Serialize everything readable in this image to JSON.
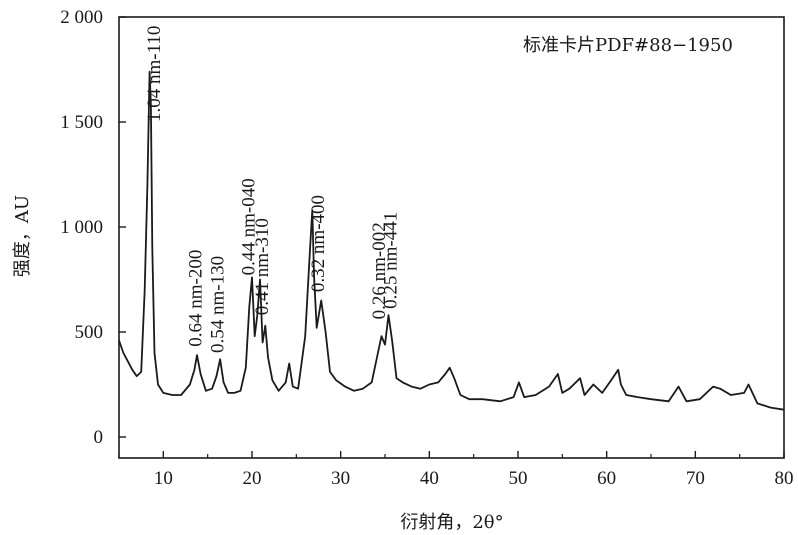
{
  "chart_data": {
    "type": "line",
    "title": "",
    "xlabel": "衍射角，2θ°",
    "ylabel": "强度，AU",
    "xlim": [
      5,
      80
    ],
    "ylim": [
      -100,
      2000
    ],
    "x_ticks": [
      10,
      20,
      30,
      40,
      50,
      60,
      70,
      80
    ],
    "x_tick_labels": [
      "10",
      "20",
      "30",
      "40",
      "50",
      "60",
      "70",
      "80"
    ],
    "y_ticks": [
      0,
      500,
      1000,
      1500,
      2000
    ],
    "y_tick_labels": [
      "0",
      "500",
      "1 000",
      "1 500",
      "2 000"
    ],
    "grid": false,
    "line_color": "#1a1a1a",
    "annotation": "标准卡片PDF#88−1950",
    "series": [
      {
        "x": [
          5,
          5.5,
          6,
          6.5,
          7,
          7.5,
          7.9,
          8.2,
          8.45,
          8.6,
          8.75,
          9.0,
          9.4,
          10,
          11,
          12,
          13,
          13.5,
          13.8,
          14.2,
          14.8,
          15.5,
          16,
          16.4,
          16.8,
          17.3,
          18,
          18.7,
          19.3,
          19.7,
          20.0,
          20.3,
          20.6,
          20.9,
          21.2,
          21.5,
          21.8,
          22.3,
          23,
          23.8,
          24.2,
          24.6,
          25.2,
          26,
          26.5,
          26.8,
          27.0,
          27.3,
          27.8,
          28.3,
          28.8,
          29.5,
          30.5,
          31.5,
          32.5,
          33.5,
          34.2,
          34.6,
          35.0,
          35.4,
          35.8,
          36.3,
          37,
          38,
          39,
          40,
          41,
          41.8,
          42.3,
          42.8,
          43.5,
          44.5,
          46,
          48,
          49.5,
          50.1,
          50.7,
          52,
          53.5,
          54.5,
          55,
          55.8,
          57,
          57.5,
          58.5,
          59.5,
          60.5,
          61.3,
          61.6,
          62.2,
          63.5,
          65,
          67,
          68.1,
          69,
          70.5,
          72,
          72.8,
          74,
          75.5,
          76,
          77,
          78.5,
          80
        ],
        "y": [
          460,
          400,
          360,
          320,
          290,
          310,
          700,
          1200,
          1740,
          1580,
          900,
          400,
          250,
          210,
          200,
          200,
          250,
          320,
          390,
          300,
          220,
          230,
          290,
          370,
          260,
          210,
          210,
          220,
          330,
          620,
          760,
          480,
          580,
          750,
          450,
          530,
          380,
          270,
          220,
          260,
          350,
          240,
          230,
          480,
          860,
          1080,
          760,
          520,
          650,
          500,
          310,
          270,
          240,
          220,
          230,
          260,
          400,
          480,
          440,
          580,
          460,
          280,
          260,
          240,
          230,
          250,
          260,
          300,
          330,
          280,
          200,
          180,
          180,
          170,
          190,
          260,
          190,
          200,
          240,
          300,
          210,
          230,
          280,
          200,
          250,
          210,
          270,
          320,
          250,
          200,
          190,
          180,
          170,
          240,
          170,
          180,
          240,
          230,
          200,
          210,
          250,
          160,
          140,
          130
        ]
      }
    ],
    "peak_labels": [
      {
        "text": "1.04 nm-110",
        "x": 9.6,
        "y": 1500
      },
      {
        "text": "0.64 nm-200",
        "x": 14.3,
        "y": 430
      },
      {
        "text": "0.54 nm-130",
        "x": 16.8,
        "y": 400
      },
      {
        "text": "0.44 nm-040",
        "x": 20.3,
        "y": 770
      },
      {
        "text": "0.41 nm-310",
        "x": 21.8,
        "y": 580
      },
      {
        "text": "0.32 nm-400",
        "x": 28.1,
        "y": 690
      },
      {
        "text": "0.26 nm-002",
        "x": 35.0,
        "y": 560
      },
      {
        "text": "0.25 nm-441",
        "x": 36.3,
        "y": 610
      }
    ]
  }
}
